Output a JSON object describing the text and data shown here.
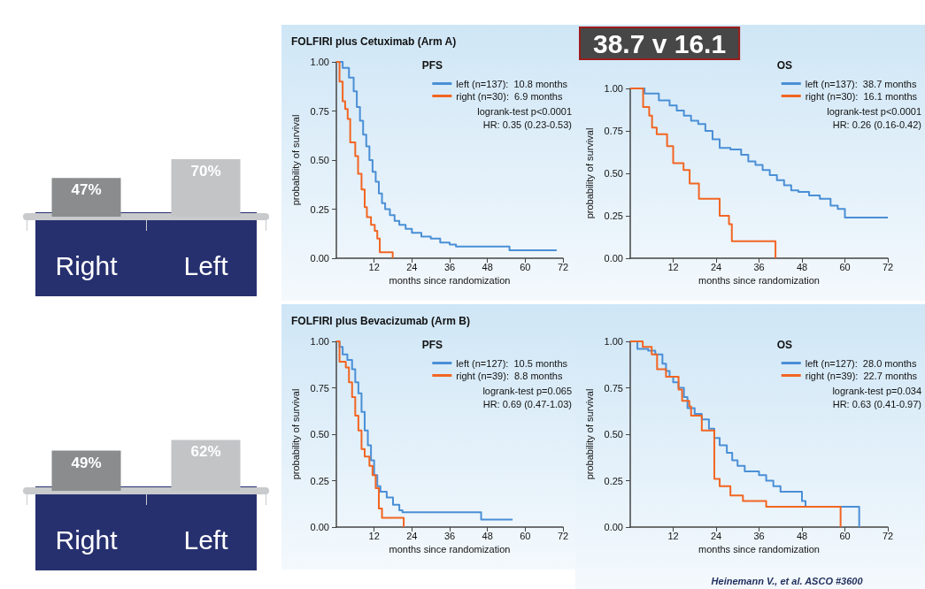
{
  "chart_data": [
    {
      "type": "bar",
      "categories": [
        "Right",
        "Left"
      ],
      "values": [
        47,
        70
      ],
      "colors": [
        "#8a8c8e",
        "#c2c4c6"
      ],
      "value_labels": [
        "47%",
        "70%"
      ]
    },
    {
      "type": "step",
      "title": "FOLFIRI plus Cetuximab (Arm A)",
      "legend_title": "PFS",
      "xlabel": "months since randomization",
      "ylabel": "probability of survival",
      "xlim": [
        0,
        72
      ],
      "xticks": [
        12,
        24,
        36,
        48,
        60,
        72
      ],
      "ylim": [
        0,
        1
      ],
      "yticks": [
        {
          "value": 0,
          "label": "0.00"
        },
        {
          "value": 0.25,
          "label": "0.25"
        },
        {
          "value": 0.5,
          "label": "0.50"
        },
        {
          "value": 0.75,
          "label": "0.75"
        },
        {
          "value": 1,
          "label": "1.00"
        }
      ],
      "grid": false,
      "legend": "top right",
      "annotations": [
        "logrank-test p<0.0001",
        "HR: 0.35 (0.23-0.53)"
      ],
      "series": [
        {
          "name": "left (n=137):  10.8 months",
          "color": "#4a8fd6",
          "x": [
            0,
            2,
            4,
            5.5,
            6.5,
            7.5,
            8.5,
            9.5,
            10.5,
            11.5,
            12.5,
            13.5,
            14.5,
            15.5,
            17,
            18.5,
            20,
            22,
            24,
            27,
            30,
            33,
            36,
            38,
            55,
            70
          ],
          "values": [
            1,
            0.97,
            0.92,
            0.85,
            0.77,
            0.7,
            0.63,
            0.57,
            0.5,
            0.44,
            0.39,
            0.33,
            0.28,
            0.25,
            0.22,
            0.19,
            0.17,
            0.15,
            0.13,
            0.11,
            0.1,
            0.08,
            0.07,
            0.06,
            0.04,
            0.04
          ]
        },
        {
          "name": "right (n=30):  6.9 months",
          "color": "#f26522",
          "x": [
            0,
            1,
            2,
            2.8,
            3.6,
            4.4,
            6,
            6.9,
            8,
            9,
            9.7,
            11,
            12.2,
            13,
            13.8,
            17.9
          ],
          "values": [
            1,
            0.9,
            0.8,
            0.76,
            0.71,
            0.59,
            0.52,
            0.43,
            0.35,
            0.26,
            0.21,
            0.17,
            0.14,
            0.1,
            0.03,
            0
          ]
        }
      ]
    },
    {
      "type": "step",
      "legend_title": "OS",
      "xlabel": "months since randomization",
      "ylabel": "probability of survival",
      "xlim": [
        0,
        72
      ],
      "xticks": [
        12,
        24,
        36,
        48,
        60,
        72
      ],
      "ylim": [
        0,
        1
      ],
      "yticks": [
        {
          "value": 0,
          "label": "0.00"
        },
        {
          "value": 0.25,
          "label": "0.25"
        },
        {
          "value": 0.5,
          "label": "0.50"
        },
        {
          "value": 0.75,
          "label": "0.75"
        },
        {
          "value": 1,
          "label": "1.00"
        }
      ],
      "grid": false,
      "legend": "top right",
      "annotations": [
        "logrank-test p<0.0001",
        "HR: 0.26 (0.16-0.42)",
        "38.7 v 16.1"
      ],
      "series": [
        {
          "name": "left (n=137):  38.7 months",
          "color": "#4a8fd6",
          "x": [
            0,
            4,
            8,
            11,
            13,
            15,
            17,
            19,
            21,
            23,
            25,
            28,
            31,
            33,
            35,
            37,
            39,
            41,
            43,
            45,
            47,
            50,
            53,
            56,
            58,
            60,
            72
          ],
          "values": [
            1,
            0.97,
            0.93,
            0.9,
            0.87,
            0.84,
            0.81,
            0.79,
            0.75,
            0.7,
            0.65,
            0.64,
            0.61,
            0.57,
            0.55,
            0.52,
            0.49,
            0.46,
            0.43,
            0.4,
            0.39,
            0.37,
            0.35,
            0.31,
            0.29,
            0.24,
            0.24
          ]
        },
        {
          "name": "right (n=30):  16.1 months",
          "color": "#f26522",
          "x": [
            0,
            3.6,
            5.3,
            6.1,
            7.4,
            10.3,
            12,
            14.9,
            16.6,
            19.2,
            25,
            27.6,
            28.4,
            40.6
          ],
          "values": [
            1,
            0.89,
            0.84,
            0.77,
            0.73,
            0.66,
            0.56,
            0.52,
            0.44,
            0.35,
            0.25,
            0.2,
            0.1,
            0
          ]
        }
      ]
    },
    {
      "type": "bar",
      "categories": [
        "Right",
        "Left"
      ],
      "values": [
        49,
        62
      ],
      "colors": [
        "#8a8c8e",
        "#c2c4c6"
      ],
      "value_labels": [
        "49%",
        "62%"
      ]
    },
    {
      "type": "step",
      "title": "FOLFIRI plus Bevacizumab (Arm B)",
      "legend_title": "PFS",
      "xlabel": "months since randomization",
      "ylabel": "probability of survival",
      "xlim": [
        0,
        72
      ],
      "xticks": [
        12,
        24,
        36,
        48,
        60,
        72
      ],
      "ylim": [
        0,
        1
      ],
      "yticks": [
        {
          "value": 0,
          "label": "0.00"
        },
        {
          "value": 0.25,
          "label": "0.25"
        },
        {
          "value": 0.5,
          "label": "0.50"
        },
        {
          "value": 0.75,
          "label": "0.75"
        },
        {
          "value": 1,
          "label": "1.00"
        }
      ],
      "grid": false,
      "legend": "top right",
      "annotations": [
        "logrank-test p=0.065",
        "HR: 0.69 (0.47-1.03)"
      ],
      "series": [
        {
          "name": "left (n=127):  10.5 months",
          "color": "#4a8fd6",
          "x": [
            0,
            1,
            2,
            3.5,
            5,
            6,
            7,
            8,
            9,
            10,
            11,
            12,
            13,
            14,
            16,
            18,
            20,
            21,
            46,
            56
          ],
          "values": [
            1,
            0.97,
            0.93,
            0.9,
            0.85,
            0.78,
            0.72,
            0.62,
            0.52,
            0.44,
            0.36,
            0.28,
            0.22,
            0.19,
            0.16,
            0.12,
            0.09,
            0.08,
            0.04,
            0.04
          ]
        },
        {
          "name": "right (n=39):  8.8 months",
          "color": "#f26522",
          "x": [
            0,
            1,
            3,
            4,
            5,
            6,
            7,
            8,
            9,
            10.5,
            11.5,
            12.5,
            13.5,
            14.5,
            21.4
          ],
          "values": [
            1,
            0.89,
            0.86,
            0.78,
            0.7,
            0.6,
            0.52,
            0.42,
            0.38,
            0.33,
            0.28,
            0.21,
            0.1,
            0.05,
            0
          ]
        }
      ]
    },
    {
      "type": "step",
      "legend_title": "OS",
      "xlabel": "months since randomization",
      "ylabel": "probability of survival",
      "xlim": [
        0,
        72
      ],
      "xticks": [
        12,
        24,
        36,
        48,
        60,
        72
      ],
      "ylim": [
        0,
        1
      ],
      "yticks": [
        {
          "value": 0,
          "label": "0.00"
        },
        {
          "value": 0.25,
          "label": "0.25"
        },
        {
          "value": 0.5,
          "label": "0.50"
        },
        {
          "value": 0.75,
          "label": "0.75"
        },
        {
          "value": 1,
          "label": "1.00"
        }
      ],
      "grid": false,
      "legend": "top right",
      "annotations": [
        "logrank-test p=0.034",
        "HR: 0.63 (0.41-0.97)",
        "Heinemann V., et al. ASCO #3600"
      ],
      "series": [
        {
          "name": "left (n=127):  28.0 months",
          "color": "#4a8fd6",
          "x": [
            0,
            2,
            5,
            7,
            9,
            10,
            11,
            12,
            13.5,
            15,
            16,
            18,
            20,
            22,
            23.5,
            25,
            27,
            28.5,
            30,
            32,
            36,
            38,
            40,
            42,
            48,
            49,
            64
          ],
          "values": [
            1,
            0.96,
            0.95,
            0.93,
            0.88,
            0.84,
            0.81,
            0.78,
            0.75,
            0.7,
            0.64,
            0.61,
            0.58,
            0.53,
            0.48,
            0.44,
            0.4,
            0.36,
            0.33,
            0.3,
            0.28,
            0.25,
            0.22,
            0.19,
            0.14,
            0.11,
            0
          ]
        },
        {
          "name": "right (n=39):  22.7 months",
          "color": "#f26522",
          "x": [
            0,
            3.5,
            6,
            7.5,
            10,
            13.5,
            14.5,
            16.5,
            17,
            20,
            23.5,
            25,
            28,
            31.5,
            38,
            58.8
          ],
          "values": [
            1,
            0.97,
            0.93,
            0.85,
            0.81,
            0.74,
            0.68,
            0.65,
            0.6,
            0.52,
            0.26,
            0.22,
            0.17,
            0.14,
            0.11,
            0
          ]
        }
      ]
    }
  ]
}
